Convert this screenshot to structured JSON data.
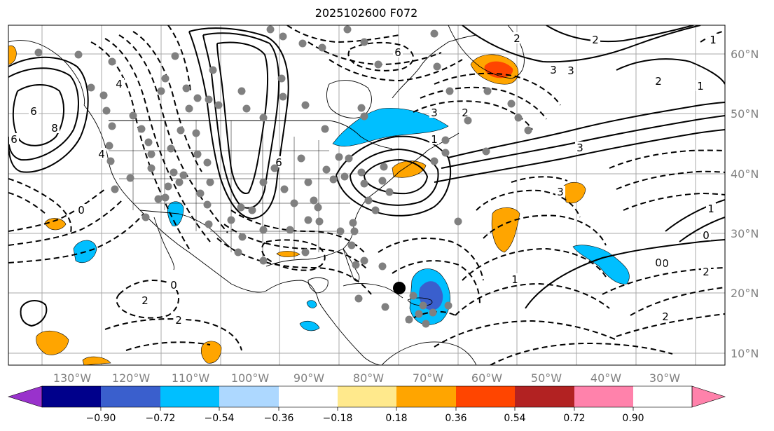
{
  "title": "2025102600 F072",
  "map": {
    "lat_labels": [
      "60°N",
      "50°N",
      "40°N",
      "30°N",
      "20°N",
      "10°N"
    ],
    "lon_labels": [
      "130°W",
      "120°W",
      "110°W",
      "100°W",
      "90°W",
      "80°W",
      "70°W",
      "60°W",
      "50°W",
      "40°W",
      "30°W"
    ],
    "contour_labels": [
      "6",
      "8",
      "6",
      "4",
      "4",
      "6",
      "3",
      "2",
      "1",
      "3",
      "2",
      "3",
      "2",
      "1",
      "0",
      "0",
      "2",
      "2",
      "1",
      "0",
      "2",
      "2",
      "0",
      "1",
      "6",
      "3",
      "3",
      "2",
      "1",
      "0",
      "0"
    ],
    "stations_color": "#808080",
    "marker_color": "#000000"
  },
  "colorbar": {
    "ticks": [
      "−0.90",
      "−0.72",
      "−0.54",
      "−0.36",
      "−0.18",
      "0.18",
      "0.36",
      "0.54",
      "0.72",
      "0.90"
    ],
    "colors": [
      "#9932cc",
      "#00008b",
      "#3a5fcd",
      "#00bfff",
      "#add8ff",
      "#ffffff",
      "#ffe98c",
      "#ffa500",
      "#ff4500",
      "#b22222",
      "#ff82ab"
    ]
  }
}
